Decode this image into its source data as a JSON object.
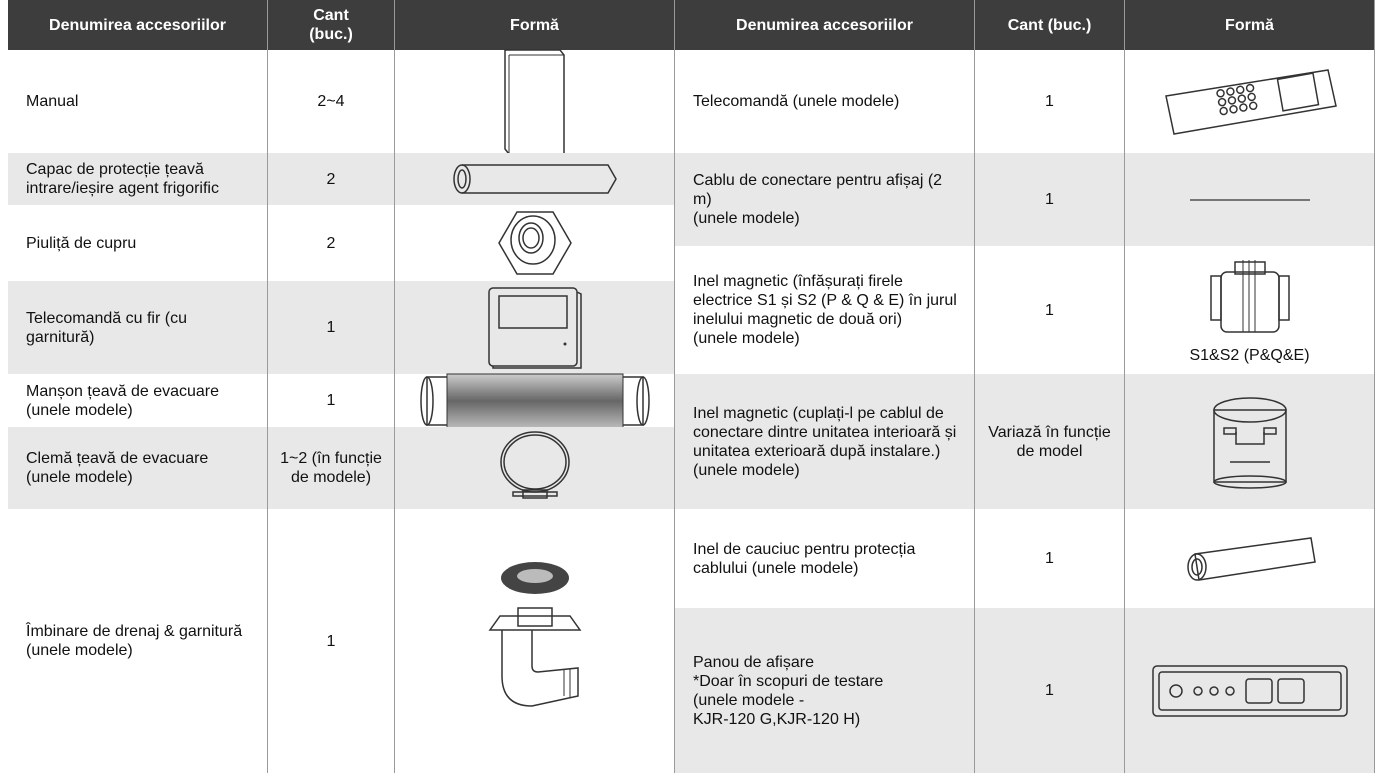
{
  "left": {
    "headers": [
      "Denumirea accesoriilor",
      "Cant (buc.)",
      "Formă"
    ],
    "rows": [
      {
        "name": "Manual",
        "qty": "2~4"
      },
      {
        "name": "Capac de protecție țeavă intrare/ieșire agent frigorific",
        "qty": "2"
      },
      {
        "name": "Piuliță de cupru",
        "qty": "2"
      },
      {
        "name": "Telecomandă cu fir (cu garnitură)",
        "qty": "1"
      },
      {
        "name": "Manșon țeavă de evacuare (unele modele)",
        "qty": "1"
      },
      {
        "name": "Clemă țeavă de evacuare (unele modele)",
        "qty": "1~2 (în funcție de modele)"
      },
      {
        "name": "Îmbinare de drenaj & garnitură (unele modele)",
        "qty": "1"
      }
    ]
  },
  "right": {
    "headers": [
      "Denumirea accesoriilor",
      "Cant (buc.)",
      "Formă"
    ],
    "rows": [
      {
        "name": "Telecomandă (unele modele)",
        "qty": "1"
      },
      {
        "name": "Cablu de conectare pentru afișaj (2 m)\n(unele modele)",
        "qty": "1"
      },
      {
        "name": "Inel magnetic (înfășurați firele electrice S1 și S2 (P & Q & E) în jurul inelului magnetic de două ori)\n(unele modele)",
        "qty": "1",
        "shape_label": "S1&S2 (P&Q&E)"
      },
      {
        "name": "Inel magnetic (cuplați-l pe cablul de conectare dintre unitatea interioară și unitatea exterioară după instalare.)\n(unele modele)",
        "qty": "Variază în funcție de model"
      },
      {
        "name": "Inel de cauciuc pentru protecția cablului (unele modele)",
        "qty": "1"
      },
      {
        "name": "Panou de afișare\n*Doar în scopuri de testare\n(unele modele -\nKJR-120 G,KJR-120 H)",
        "qty": "1"
      }
    ]
  }
}
